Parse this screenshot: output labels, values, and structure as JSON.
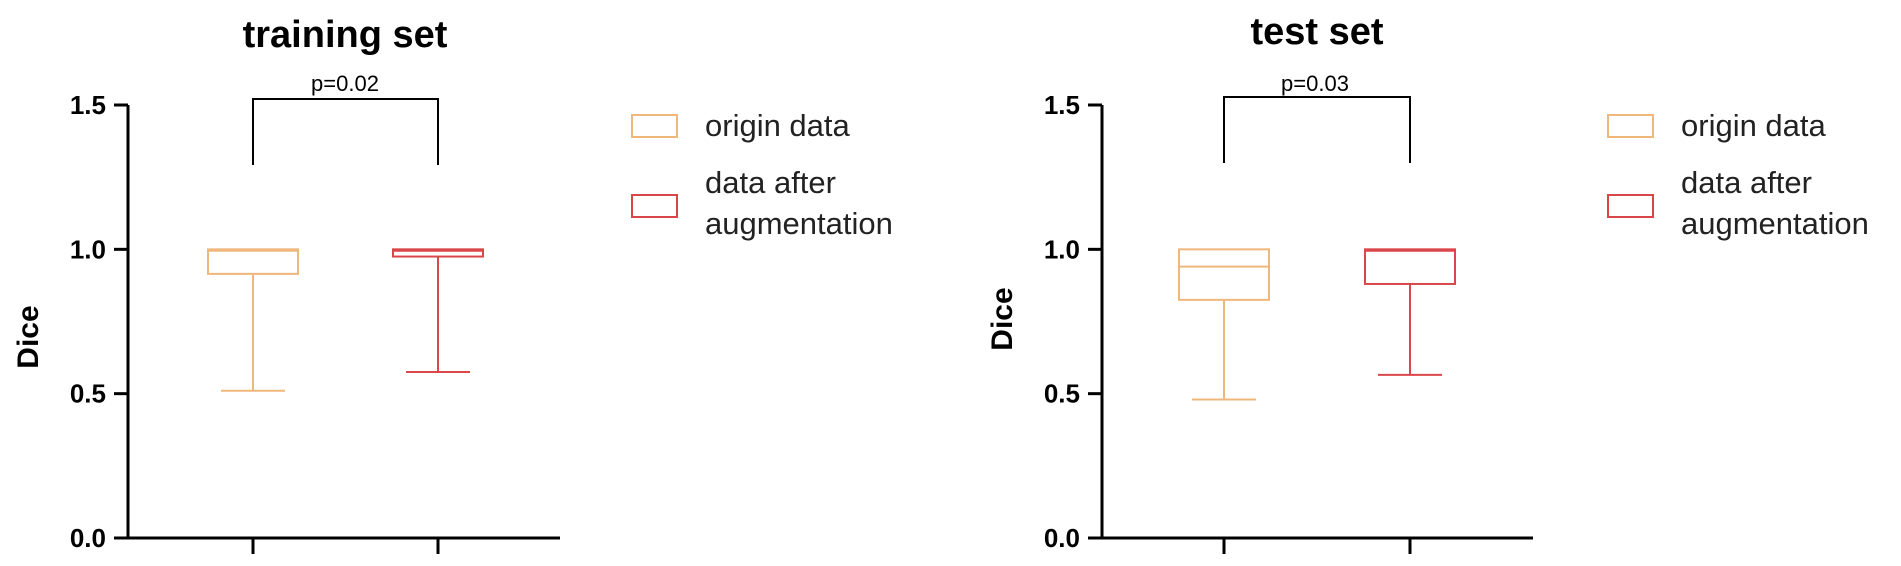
{
  "colors": {
    "origin": "#F0B77C",
    "augment": "#D9474B",
    "axis": "#000000"
  },
  "chart_data": [
    {
      "type": "box",
      "title": "training set",
      "xlabel": "",
      "ylabel": "Dice",
      "ylim": [
        0,
        1.5
      ],
      "yticks": [
        "0.0",
        "0.5",
        "1.0",
        "1.5"
      ],
      "grid": false,
      "legend": {
        "placement": "right",
        "entries": [
          {
            "lines": [
              "origin data"
            ]
          },
          {
            "lines": [
              "data after",
              "augmentation"
            ]
          }
        ]
      },
      "annotation": "p=0.02",
      "series": [
        {
          "min": 0.51,
          "q1": 0.915,
          "median": 0.995,
          "q3": 1.0,
          "max": 1.0
        },
        {
          "min": 0.575,
          "q1": 0.975,
          "median": 0.995,
          "q3": 1.0,
          "max": 1.0
        }
      ]
    },
    {
      "type": "box",
      "title": "test set",
      "xlabel": "",
      "ylabel": "Dice",
      "ylim": [
        0,
        1.5
      ],
      "yticks": [
        "0.0",
        "0.5",
        "1.0",
        "1.5"
      ],
      "grid": false,
      "legend": {
        "placement": "right",
        "entries": [
          {
            "lines": [
              "origin data"
            ]
          },
          {
            "lines": [
              "data after",
              "augmentation"
            ]
          }
        ]
      },
      "annotation": "p=0.03",
      "series": [
        {
          "min": 0.48,
          "q1": 0.825,
          "median": 0.94,
          "q3": 1.0,
          "max": 1.0
        },
        {
          "min": 0.565,
          "q1": 0.88,
          "median": 0.995,
          "q3": 1.0,
          "max": 1.0
        }
      ]
    }
  ]
}
